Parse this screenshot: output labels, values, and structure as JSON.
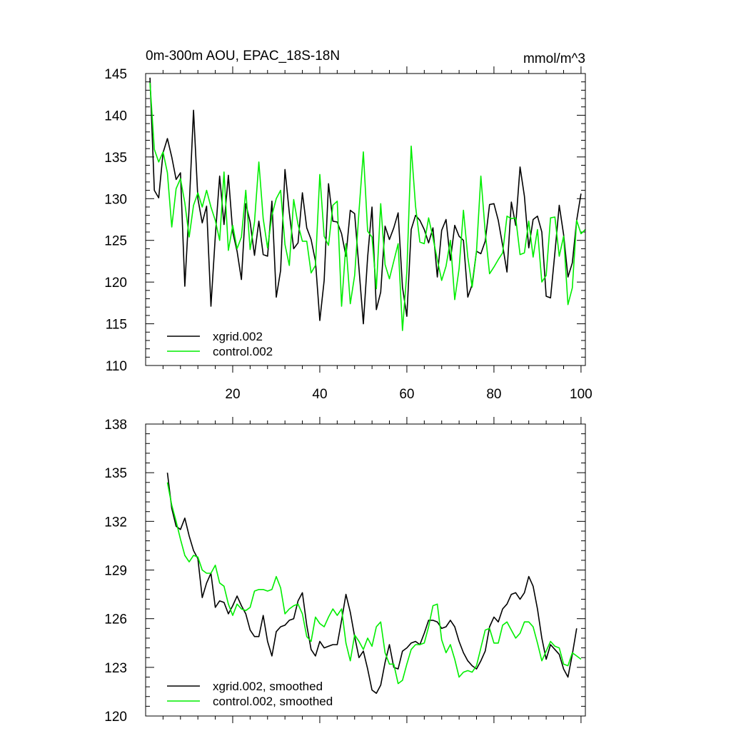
{
  "chart_data": [
    {
      "type": "line",
      "title": "0m-300m AOU, EPAC_18S-18N",
      "units": "mmol/m^3",
      "xlim": [
        0,
        101
      ],
      "ylim": [
        110,
        145
      ],
      "xticks": [
        20,
        40,
        60,
        80,
        100
      ],
      "xtick_labels": [
        "20",
        "40",
        "60",
        "80",
        "100"
      ],
      "yticks": [
        110,
        115,
        120,
        125,
        130,
        135,
        140,
        145
      ],
      "ytick_labels": [
        "110",
        "115",
        "120",
        "125",
        "130",
        "135",
        "140",
        "145"
      ],
      "legend_position": "bottom-left",
      "series": [
        {
          "name": "xgrid.002",
          "color": "#000000",
          "x_start": 1,
          "values": [
            144.5,
            131.0,
            130.1,
            135.5,
            137.2,
            135.0,
            132.3,
            133.1,
            119.5,
            129.0,
            140.6,
            130.0,
            127.1,
            129.1,
            117.1,
            125.5,
            132.7,
            126.9,
            132.8,
            126.0,
            123.7,
            120.3,
            129.4,
            127.2,
            123.2,
            127.3,
            123.3,
            123.1,
            129.7,
            118.2,
            121.4,
            133.5,
            128.3,
            124.0,
            124.7,
            130.7,
            126.5,
            125.1,
            122.5,
            115.4,
            120.2,
            131.8,
            127.3,
            127.2,
            125.8,
            123.1,
            128.6,
            128.2,
            121.6,
            115.0,
            123.0,
            129.0,
            116.7,
            118.8,
            126.7,
            125.1,
            126.5,
            128.3,
            119.4,
            115.9,
            126.3,
            128.0,
            127.4,
            126.3,
            124.7,
            126.5,
            120.6,
            126.2,
            127.5,
            122.6,
            126.8,
            125.5,
            125.0,
            118.2,
            119.7,
            123.7,
            123.4,
            124.9,
            129.3,
            129.4,
            127.4,
            124.4,
            121.2,
            129.6,
            126.8,
            133.8,
            130.3,
            124.1,
            127.5,
            127.9,
            126.0,
            118.3,
            118.1,
            123.5,
            129.2,
            125.7,
            120.6,
            122.3,
            127.4,
            130.6
          ]
        },
        {
          "name": "control.002",
          "color": "#00ee00",
          "x_start": 1,
          "values": [
            143.9,
            135.9,
            134.4,
            135.6,
            133.1,
            126.6,
            131.2,
            132.4,
            129.5,
            125.4,
            129.2,
            130.7,
            129.0,
            131.0,
            129.0,
            127.4,
            125.0,
            133.2,
            123.8,
            126.8,
            124.0,
            125.4,
            131.0,
            123.9,
            127.2,
            134.4,
            127.6,
            124.1,
            128.0,
            130.0,
            131.0,
            124.5,
            122.0,
            129.9,
            126.9,
            124.9,
            124.9,
            121.1,
            122.0,
            132.9,
            125.5,
            124.4,
            129.2,
            129.7,
            117.1,
            124.6,
            117.4,
            120.8,
            128.5,
            135.6,
            126.1,
            125.4,
            119.2,
            129.4,
            122.1,
            120.4,
            122.5,
            124.6,
            114.2,
            121.2,
            136.3,
            129.1,
            124.8,
            124.6,
            127.7,
            125.3,
            122.7,
            120.2,
            121.9,
            125.0,
            117.9,
            121.6,
            128.6,
            123.0,
            119.4,
            123.7,
            132.7,
            126.0,
            121.0,
            121.8,
            122.7,
            123.5,
            127.9,
            127.6,
            127.7,
            123.3,
            123.5,
            127.3,
            123.0,
            126.3,
            120.0,
            120.8,
            127.7,
            127.8,
            123.1,
            125.5,
            117.3,
            119.3,
            127.4,
            125.8,
            126.3
          ]
        }
      ]
    },
    {
      "type": "line",
      "title": "",
      "units": "",
      "xlim": [
        0,
        101
      ],
      "ylim": [
        120,
        138
      ],
      "xticks": [
        20,
        40,
        60,
        80,
        100
      ],
      "xtick_labels": [],
      "yticks": [
        120,
        123,
        126,
        129,
        132,
        135,
        138
      ],
      "ytick_labels": [
        "120",
        "123",
        "126",
        "129",
        "132",
        "135",
        "138"
      ],
      "legend_position": "bottom-left",
      "series": [
        {
          "name": "xgrid.002, smoothed",
          "color": "#000000",
          "x_start": 5,
          "values": [
            135.0,
            132.8,
            131.7,
            131.5,
            132.2,
            131.1,
            130.2,
            129.7,
            127.3,
            128.2,
            128.8,
            126.7,
            127.1,
            127.0,
            126.3,
            126.8,
            127.4,
            126.8,
            126.3,
            125.3,
            124.9,
            124.9,
            126.2,
            124.6,
            123.7,
            125.2,
            125.5,
            125.6,
            125.9,
            126.0,
            127.1,
            127.6,
            125.6,
            124.1,
            123.7,
            124.6,
            124.2,
            124.3,
            124.4,
            124.4,
            125.9,
            127.5,
            126.4,
            124.9,
            123.6,
            124.0,
            122.9,
            121.6,
            121.4,
            121.9,
            123.3,
            124.4,
            123.0,
            122.9,
            124.0,
            124.2,
            124.5,
            124.6,
            124.4,
            125.1,
            125.9,
            125.9,
            125.8,
            125.4,
            125.5,
            125.9,
            125.5,
            124.6,
            123.9,
            123.4,
            123.1,
            122.9,
            123.4,
            124.0,
            125.5,
            126.1,
            125.8,
            126.6,
            126.9,
            127.5,
            127.6,
            127.2,
            127.6,
            128.6,
            128.0,
            126.6,
            124.8,
            123.5,
            124.4,
            124.1,
            123.8,
            122.9,
            122.4,
            123.8,
            125.4
          ]
        },
        {
          "name": "control.002, smoothed",
          "color": "#00ee00",
          "x_start": 5,
          "values": [
            134.4,
            133.0,
            132.0,
            130.9,
            129.9,
            129.5,
            129.9,
            129.8,
            129.0,
            128.8,
            128.8,
            129.3,
            128.2,
            128.0,
            126.9,
            126.2,
            126.9,
            126.6,
            126.5,
            126.7,
            127.7,
            127.8,
            127.8,
            127.7,
            127.8,
            128.6,
            127.9,
            126.3,
            126.6,
            126.8,
            126.9,
            126.3,
            124.9,
            124.6,
            126.1,
            125.7,
            125.5,
            126.1,
            126.6,
            126.2,
            126.6,
            124.5,
            123.4,
            125.0,
            124.6,
            124.1,
            124.8,
            124.3,
            125.5,
            125.8,
            123.9,
            123.2,
            123.2,
            122.0,
            122.2,
            123.2,
            124.1,
            124.4,
            124.4,
            124.5,
            125.5,
            126.8,
            126.9,
            124.7,
            123.9,
            124.4,
            123.5,
            122.4,
            122.7,
            122.8,
            122.7,
            123.1,
            124.2,
            125.3,
            125.4,
            124.5,
            124.5,
            125.6,
            125.8,
            125.3,
            124.8,
            125.1,
            125.8,
            125.8,
            125.5,
            124.5,
            123.4,
            124.0,
            124.6,
            124.3,
            124.2,
            123.2,
            123.1,
            123.9,
            123.7,
            123.5
          ]
        }
      ]
    }
  ]
}
